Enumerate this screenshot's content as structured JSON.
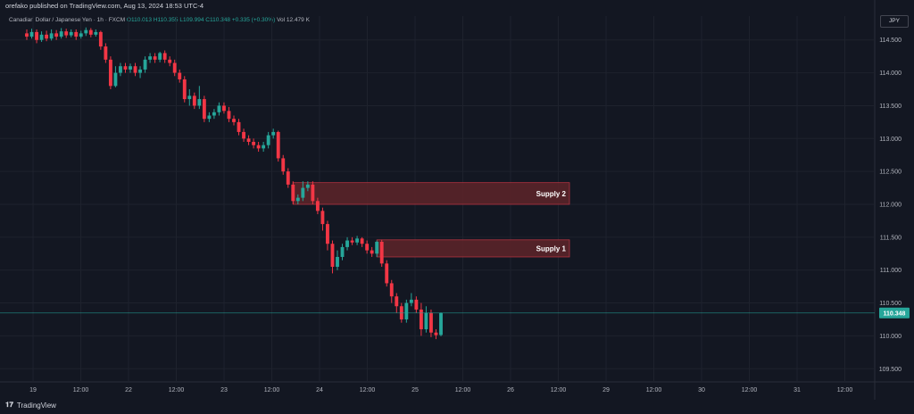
{
  "header": {
    "published": "orefako published on TradingView.com, Aug 13, 2024 18:53 UTC-4",
    "legend": {
      "symbol": "Canadian Dollar / Japanese Yen",
      "timeframe": "1h",
      "exchange": "FXCM",
      "open": "O110.013",
      "high": "H110.355",
      "low": "L109.994",
      "close": "C110.348",
      "change": "+0.335 (+0.30%)",
      "volume": "Vol 12.479 K"
    },
    "currency": "JPY"
  },
  "footer": {
    "brand": "TradingView"
  },
  "colors": {
    "bg": "#131722",
    "up": "#26a69a",
    "down": "#f23645",
    "zone": "#5a2329",
    "grid": "#1e222d",
    "text": "#b2b5be"
  },
  "chart_data": {
    "type": "candlestick",
    "y_ticks": [
      "114.500",
      "114.000",
      "113.500",
      "113.000",
      "112.500",
      "112.000",
      "111.500",
      "111.000",
      "110.500",
      "110.000",
      "109.500"
    ],
    "ylim": [
      109.3,
      114.7
    ],
    "x_ticks": [
      "19",
      "12:00",
      "22",
      "12:00",
      "23",
      "12:00",
      "24",
      "12:00",
      "25",
      "12:00",
      "26",
      "12:00",
      "29",
      "12:00",
      "30",
      "12:00",
      "31",
      "12:00"
    ],
    "last_price": "110.348",
    "zones": [
      {
        "label": "Supply 2",
        "from": 112.0,
        "to": 112.33
      },
      {
        "label": "Supply 1",
        "from": 111.2,
        "to": 111.46
      }
    ],
    "candles": [
      [
        114.6,
        114.55,
        114.66,
        114.5
      ],
      [
        114.55,
        114.62,
        114.67,
        114.52
      ],
      [
        114.62,
        114.5,
        114.66,
        114.45
      ],
      [
        114.5,
        114.58,
        114.63,
        114.47
      ],
      [
        114.58,
        114.52,
        114.64,
        114.48
      ],
      [
        114.52,
        114.6,
        114.66,
        114.49
      ],
      [
        114.6,
        114.55,
        114.65,
        114.5
      ],
      [
        114.55,
        114.63,
        114.68,
        114.52
      ],
      [
        114.63,
        114.57,
        114.67,
        114.53
      ],
      [
        114.57,
        114.62,
        114.66,
        114.54
      ],
      [
        114.62,
        114.55,
        114.66,
        114.5
      ],
      [
        114.55,
        114.6,
        114.64,
        114.52
      ],
      [
        114.6,
        114.65,
        114.69,
        114.56
      ],
      [
        114.65,
        114.58,
        114.68,
        114.54
      ],
      [
        114.58,
        114.62,
        114.66,
        114.55
      ],
      [
        114.62,
        114.4,
        114.64,
        114.35
      ],
      [
        114.4,
        114.2,
        114.45,
        114.15
      ],
      [
        114.2,
        113.8,
        114.25,
        113.75
      ],
      [
        113.8,
        114.0,
        114.1,
        113.78
      ],
      [
        114.0,
        114.1,
        114.15,
        113.95
      ],
      [
        114.1,
        114.05,
        114.15,
        114.0
      ],
      [
        114.05,
        114.1,
        114.14,
        114.0
      ],
      [
        114.1,
        114.0,
        114.15,
        113.95
      ],
      [
        114.0,
        114.05,
        114.1,
        113.92
      ],
      [
        114.05,
        114.2,
        114.25,
        114.0
      ],
      [
        114.2,
        114.25,
        114.3,
        114.15
      ],
      [
        114.25,
        114.2,
        114.3,
        114.15
      ],
      [
        114.2,
        114.3,
        114.32,
        114.16
      ],
      [
        114.3,
        114.2,
        114.34,
        114.15
      ],
      [
        114.2,
        114.15,
        114.25,
        114.1
      ],
      [
        114.15,
        114.0,
        114.2,
        113.95
      ],
      [
        114.0,
        113.9,
        114.05,
        113.85
      ],
      [
        113.9,
        113.6,
        113.95,
        113.55
      ],
      [
        113.6,
        113.65,
        113.75,
        113.5
      ],
      [
        113.65,
        113.5,
        113.7,
        113.45
      ],
      [
        113.5,
        113.6,
        113.8,
        113.45
      ],
      [
        113.6,
        113.3,
        113.65,
        113.25
      ],
      [
        113.3,
        113.35,
        113.4,
        113.25
      ],
      [
        113.35,
        113.4,
        113.45,
        113.3
      ],
      [
        113.4,
        113.5,
        113.55,
        113.35
      ],
      [
        113.5,
        113.42,
        113.55,
        113.38
      ],
      [
        113.42,
        113.3,
        113.48,
        113.25
      ],
      [
        113.3,
        113.25,
        113.35,
        113.2
      ],
      [
        113.25,
        113.1,
        113.3,
        113.05
      ],
      [
        113.1,
        113.0,
        113.15,
        112.95
      ],
      [
        113.0,
        112.95,
        113.05,
        112.9
      ],
      [
        112.95,
        112.9,
        113.0,
        112.85
      ],
      [
        112.9,
        112.85,
        112.95,
        112.8
      ],
      [
        112.85,
        112.9,
        112.95,
        112.8
      ],
      [
        112.9,
        113.05,
        113.1,
        112.85
      ],
      [
        113.05,
        113.1,
        113.15,
        113.0
      ],
      [
        113.1,
        112.7,
        113.12,
        112.65
      ],
      [
        112.7,
        112.5,
        112.75,
        112.45
      ],
      [
        112.5,
        112.3,
        112.55,
        112.25
      ],
      [
        112.3,
        112.05,
        112.35,
        112.0
      ],
      [
        112.05,
        112.1,
        112.15,
        112.0
      ],
      [
        112.1,
        112.25,
        112.35,
        112.05
      ],
      [
        112.25,
        112.3,
        112.35,
        112.2
      ],
      [
        112.3,
        112.05,
        112.35,
        112.0
      ],
      [
        112.05,
        111.9,
        112.1,
        111.85
      ],
      [
        111.9,
        111.7,
        111.95,
        111.6
      ],
      [
        111.7,
        111.4,
        111.75,
        111.3
      ],
      [
        111.4,
        111.05,
        111.45,
        110.95
      ],
      [
        111.05,
        111.2,
        111.3,
        111.0
      ],
      [
        111.2,
        111.35,
        111.4,
        111.15
      ],
      [
        111.35,
        111.45,
        111.5,
        111.3
      ],
      [
        111.45,
        111.42,
        111.5,
        111.38
      ],
      [
        111.42,
        111.48,
        111.52,
        111.38
      ],
      [
        111.48,
        111.4,
        111.5,
        111.35
      ],
      [
        111.4,
        111.3,
        111.45,
        111.25
      ],
      [
        111.3,
        111.25,
        111.35,
        111.2
      ],
      [
        111.25,
        111.43,
        111.45,
        111.2
      ],
      [
        111.43,
        111.1,
        111.46,
        111.05
      ],
      [
        111.1,
        110.8,
        111.15,
        110.75
      ],
      [
        110.8,
        110.6,
        110.85,
        110.5
      ],
      [
        110.6,
        110.45,
        110.65,
        110.35
      ],
      [
        110.45,
        110.25,
        110.5,
        110.2
      ],
      [
        110.25,
        110.5,
        110.55,
        110.2
      ],
      [
        110.5,
        110.55,
        110.65,
        110.45
      ],
      [
        110.55,
        110.4,
        110.6,
        110.35
      ],
      [
        110.4,
        110.1,
        110.5,
        110.0
      ],
      [
        110.1,
        110.35,
        110.45,
        110.05
      ],
      [
        110.35,
        110.05,
        110.4,
        109.98
      ],
      [
        110.05,
        110.01,
        110.1,
        109.95
      ],
      [
        110.013,
        110.348,
        110.355,
        109.994
      ]
    ]
  }
}
